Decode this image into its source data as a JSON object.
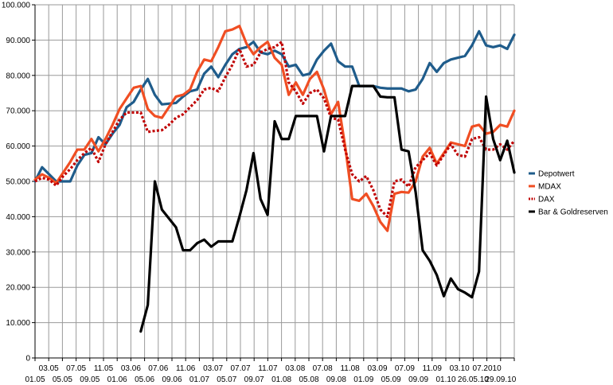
{
  "chart_data": {
    "type": "line",
    "title": "",
    "xlabel": "",
    "ylabel": "",
    "ylim": [
      0,
      100000
    ],
    "yticks": [
      "0",
      "10.000",
      "20.000",
      "30.000",
      "40.000",
      "50.000",
      "60.000",
      "70.000",
      "80.000",
      "90.000",
      "100.000"
    ],
    "xticks_bottom": [
      "01.05",
      "05.05",
      "09.05",
      "01.06",
      "05.06",
      "09.06",
      "01.07",
      "05.07",
      "09.07",
      "01.08",
      "05.08",
      "09.08",
      "01.09",
      "05.09",
      "09.09",
      "01.10",
      "26.05.10",
      "29.09.10"
    ],
    "xticks_top": [
      "03.05",
      "07.05",
      "11.05",
      "03.06",
      "07.06",
      "11.06",
      "03.07",
      "07.07",
      "11.07",
      "03.08",
      "07.08",
      "11.08",
      "03.09",
      "07.09",
      "11.09",
      "03.10",
      "07.2010"
    ],
    "grid": true,
    "legend_position": "right",
    "series": [
      {
        "name": "Depotwert",
        "color": "#1f5c8b",
        "style": "solid",
        "values": [
          50000,
          54000,
          52000,
          50000,
          50000,
          50000,
          54500,
          57500,
          58000,
          62500,
          60500,
          63500,
          66000,
          71000,
          72500,
          76000,
          79000,
          74500,
          71800,
          72000,
          72200,
          74000,
          75500,
          76000,
          80500,
          82500,
          79500,
          83000,
          86000,
          87500,
          88000,
          89500,
          86500,
          86000,
          87000,
          86000,
          82500,
          83000,
          80000,
          80500,
          84500,
          87000,
          89000,
          84000,
          82500,
          82500,
          77000,
          77000,
          77000,
          76500,
          76300,
          76300,
          76300,
          75500,
          76000,
          79000,
          83500,
          81000,
          83500,
          84500,
          85000,
          85500,
          88500,
          92500,
          88500,
          88000,
          88500,
          87500,
          91500
        ]
      },
      {
        "name": "MDAX",
        "color": "#f04e23",
        "style": "solid",
        "values": [
          50500,
          52000,
          51000,
          49500,
          52500,
          55500,
          59000,
          59000,
          62000,
          58500,
          62000,
          66000,
          70500,
          73500,
          76500,
          77000,
          70500,
          68500,
          68000,
          71000,
          74000,
          74500,
          76000,
          81000,
          84500,
          84000,
          88000,
          92500,
          93000,
          94000,
          89000,
          86000,
          88000,
          89500,
          85000,
          83000,
          74500,
          78000,
          74500,
          79000,
          81000,
          76000,
          69000,
          72500,
          60000,
          45000,
          44500,
          46500,
          43000,
          38500,
          36000,
          46500,
          47000,
          46800,
          50000,
          57000,
          59500,
          55000,
          58000,
          61000,
          60500,
          60000,
          65500,
          66000,
          63500,
          64000,
          66000,
          65500,
          70000
        ]
      },
      {
        "name": "DAX",
        "color": "#c00000",
        "style": "dotted",
        "values": [
          50000,
          51000,
          50500,
          48800,
          51500,
          53500,
          56000,
          58000,
          59500,
          55500,
          60500,
          64000,
          67500,
          69500,
          69500,
          69500,
          64000,
          64300,
          64500,
          66000,
          68000,
          69000,
          71000,
          73000,
          76000,
          76500,
          75500,
          79500,
          83000,
          87500,
          82500,
          83000,
          86500,
          87500,
          88000,
          89500,
          78000,
          75500,
          72000,
          75000,
          76000,
          73500,
          68000,
          67500,
          59000,
          52000,
          50000,
          51500,
          47500,
          42000,
          40000,
          50000,
          50500,
          48500,
          54000,
          56000,
          58000,
          54500,
          57500,
          60500,
          57500,
          57000,
          62000,
          62500,
          59000,
          59000,
          60500,
          59000,
          61500
        ]
      },
      {
        "name": "Bar & Goldreserven",
        "color": "#000000",
        "style": "solid",
        "values": [
          null,
          null,
          null,
          null,
          null,
          null,
          null,
          null,
          null,
          null,
          null,
          null,
          null,
          null,
          null,
          7500,
          15000,
          50000,
          42000,
          39500,
          37000,
          30500,
          30500,
          32500,
          33500,
          31500,
          33000,
          33000,
          33000,
          40000,
          47500,
          58000,
          45000,
          40500,
          67000,
          62000,
          62000,
          68500,
          68500,
          68500,
          68500,
          58500,
          68500,
          68500,
          68500,
          77000,
          77000,
          77000,
          77000,
          74000,
          73800,
          73800,
          59000,
          58500,
          47000,
          30500,
          27500,
          23500,
          17500,
          22500,
          19500,
          18500,
          17200,
          24500,
          74000,
          62000,
          56000,
          61500,
          52500
        ]
      }
    ]
  }
}
